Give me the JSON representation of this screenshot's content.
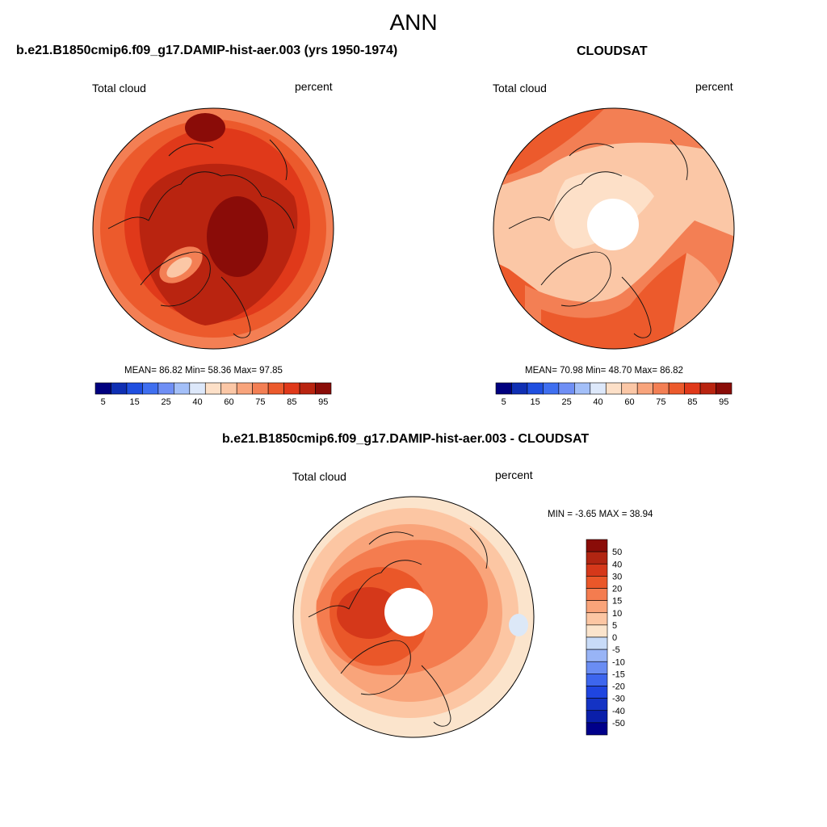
{
  "figure": {
    "title": "ANN",
    "diff_title": "b.e21.B1850cmip6.f09_g17.DAMIP-hist-aer.003 - CLOUDSAT"
  },
  "colors": {
    "abs_palette": [
      "#00007f",
      "#0f2fb3",
      "#1f4fe0",
      "#3f6ff0",
      "#6f8ff5",
      "#a3bff8",
      "#dde8fa",
      "#fde0c8",
      "#fbc7a6",
      "#f8a47c",
      "#f37f54",
      "#ec5a2c",
      "#e0391a",
      "#b92410",
      "#8a0c08"
    ],
    "diff_palette": [
      "#00008a",
      "#0a1faa",
      "#1433c4",
      "#1f45e0",
      "#3d66ee",
      "#6a8df3",
      "#98b4f6",
      "#c8dbf8",
      "#fbe4cc",
      "#fcc6a3",
      "#f9a47a",
      "#f47c4f",
      "#ea5729",
      "#d5381a",
      "#b12512",
      "#8a0c08"
    ],
    "map_fill_1": [
      "#8a0c08",
      "#b92410",
      "#e0391a",
      "#ec5a2c",
      "#f37f54",
      "#fbc7a6"
    ],
    "map_fill_2": [
      "#fde0c8",
      "#fbc7a6",
      "#f8a47c",
      "#f37f54",
      "#ec5a2c",
      "#e0391a"
    ],
    "map_fill_3": [
      "#fbe4cc",
      "#fcc6a3",
      "#f9a47a",
      "#f47c4f",
      "#ea5729",
      "#d5381a"
    ]
  },
  "panels": [
    {
      "title": "b.e21.B1850cmip6.f09_g17.DAMIP-hist-aer.003 (yrs 1950-1974)",
      "left_label": "Total cloud",
      "right_label": "percent",
      "stats": "MEAN=  86.82  Min=  58.36  Max=  97.85",
      "colorbar_ticks": [
        "5",
        "15",
        "25",
        "40",
        "60",
        "75",
        "85",
        "95"
      ]
    },
    {
      "title": "CLOUDSAT",
      "left_label": "Total cloud",
      "right_label": "percent",
      "stats": "MEAN=  70.98  Min=  48.70  Max=  86.82",
      "colorbar_ticks": [
        "5",
        "15",
        "25",
        "40",
        "60",
        "75",
        "85",
        "95"
      ]
    },
    {
      "left_label": "Total cloud",
      "right_label": "percent",
      "stats": "MIN =  -3.65 MAX =  38.94",
      "colorbar_ticks": [
        "50",
        "40",
        "30",
        "20",
        "15",
        "10",
        "5",
        "0",
        "-5",
        "-10",
        "-15",
        "-20",
        "-30",
        "-40",
        "-50"
      ]
    }
  ]
}
